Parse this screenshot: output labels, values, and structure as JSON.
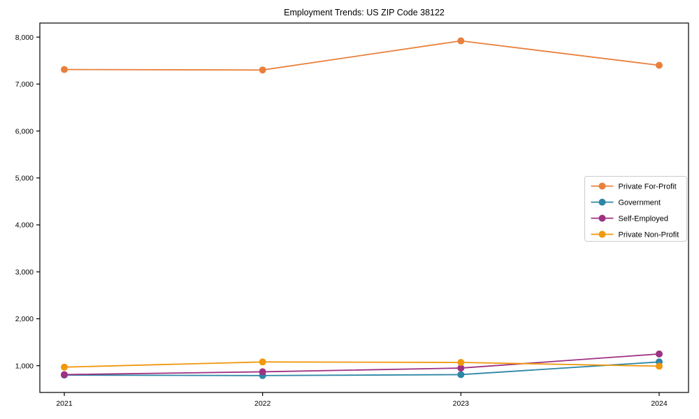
{
  "chart_data": {
    "type": "line",
    "title": "Employment Trends: US ZIP Code 38122",
    "xlabel": "",
    "ylabel": "",
    "categories": [
      "2021",
      "2022",
      "2023",
      "2024"
    ],
    "series": [
      {
        "name": "Private For-Profit",
        "color": "#E8803D",
        "values": [
          7310,
          7300,
          7920,
          7400
        ]
      },
      {
        "name": "Government",
        "color": "#2E86A5",
        "values": [
          800,
          790,
          810,
          1080
        ]
      },
      {
        "name": "Self-Employed",
        "color": "#9E3182",
        "values": [
          810,
          870,
          950,
          1250
        ]
      },
      {
        "name": "Private Non-Profit",
        "color": "#F0980E",
        "values": [
          970,
          1080,
          1070,
          990
        ]
      }
    ],
    "yticks": [
      1000,
      2000,
      3000,
      4000,
      5000,
      6000,
      7000,
      8000
    ],
    "ytick_labels": [
      "1,000",
      "2,000",
      "3,000",
      "4,000",
      "5,000",
      "6,000",
      "7,000",
      "8,000"
    ],
    "ylim": [
      430,
      8300
    ],
    "grid": false,
    "legend_position": "center-right",
    "marker": "circle",
    "frame_color": "#000000",
    "legend_border_color": "#cccccc",
    "background_color": "#ffffff"
  }
}
